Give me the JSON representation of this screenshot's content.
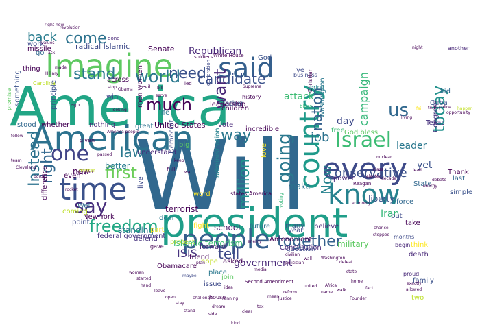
{
  "word_cloud": {
    "words": [
      {
        "text": "Will",
        "color": "#31688e"
      },
      {
        "text": "America",
        "color": "#21a585"
      },
      {
        "text": "president",
        "color": "#1f9e89"
      },
      {
        "text": "American",
        "color": "#2c728e"
      },
      {
        "text": "Imagine",
        "color": "#5ec962"
      },
      {
        "text": "time",
        "color": "#3b528b"
      },
      {
        "text": "said",
        "color": "#35608d"
      },
      {
        "text": "every",
        "color": "#3e4a89"
      },
      {
        "text": "people",
        "color": "#355f8d"
      },
      {
        "text": "country",
        "color": "#1f9a8a"
      },
      {
        "text": "know",
        "color": "#26828e"
      },
      {
        "text": "freedom",
        "color": "#22a884"
      },
      {
        "text": "Israel",
        "color": "#3dbc74"
      },
      {
        "text": "one",
        "color": "#414487"
      },
      {
        "text": "say",
        "color": "#472d7b"
      },
      {
        "text": "world",
        "color": "#2a788e"
      },
      {
        "text": "way",
        "color": "#2a788e"
      },
      {
        "text": "us",
        "color": "#31688e"
      },
      {
        "text": "today",
        "color": "#21918c"
      },
      {
        "text": "going",
        "color": "#2a788e"
      },
      {
        "text": "candidate",
        "color": "#3b528b"
      },
      {
        "text": "much",
        "color": "#440154"
      },
      {
        "text": "come",
        "color": "#2c728e"
      },
      {
        "text": "stand",
        "color": "#2a788e"
      },
      {
        "text": "want",
        "color": "#482878"
      },
      {
        "text": "million",
        "color": "#21918c"
      },
      {
        "text": "together",
        "color": "#34618d"
      },
      {
        "text": "nation",
        "color": "#34618d"
      },
      {
        "text": "first",
        "color": "#6ccd5a"
      },
      {
        "text": "law",
        "color": "#2a788e"
      },
      {
        "text": "conservative",
        "color": "#3b528b"
      },
      {
        "text": "back",
        "color": "#287c8e"
      },
      {
        "text": "need",
        "color": "#3b528b"
      },
      {
        "text": "tell",
        "color": "#3e4a89"
      },
      {
        "text": "Now",
        "color": "#26828e"
      },
      {
        "text": "job",
        "color": "#2c728e"
      },
      {
        "text": "Republican",
        "color": "#482878"
      },
      {
        "text": "right",
        "color": "#31688e"
      },
      {
        "text": "Instead",
        "color": "#2c728e"
      },
      {
        "text": "United States",
        "color": "#440154"
      },
      {
        "text": "radical Islamic",
        "color": "#3e4a89"
      },
      {
        "text": "Senate",
        "color": "#440154"
      },
      {
        "text": "campaign",
        "color": "#35b779"
      },
      {
        "text": "leader",
        "color": "#2a788e"
      },
      {
        "text": "yet",
        "color": "#3b528b"
      },
      {
        "text": "government",
        "color": "#482878"
      },
      {
        "text": "ISIS",
        "color": "#46327e"
      },
      {
        "text": "terrorist",
        "color": "#440154"
      },
      {
        "text": "standing",
        "color": "#2a788e"
      },
      {
        "text": "school",
        "color": "#481769"
      },
      {
        "text": "Iran",
        "color": "#35b779"
      },
      {
        "text": "military",
        "color": "#5ec962"
      },
      {
        "text": "liberty",
        "color": "#3b528b"
      },
      {
        "text": "make",
        "color": "#2c728e"
      },
      {
        "text": "day",
        "color": "#3e4a89"
      },
      {
        "text": "vote",
        "color": "#482878"
      },
      {
        "text": "new",
        "color": "#440154"
      },
      {
        "text": "better",
        "color": "#287c8e"
      },
      {
        "text": "live",
        "color": "#3e4a89"
      },
      {
        "text": "free",
        "color": "#3dbc74"
      },
      {
        "text": "God bless",
        "color": "#5ec962"
      },
      {
        "text": "Cuba",
        "color": "#3b528b"
      },
      {
        "text": "Texas",
        "color": "#46327e"
      },
      {
        "text": "kid",
        "color": "#31688e"
      },
      {
        "text": "Thank",
        "color": "#440154"
      },
      {
        "text": "last",
        "color": "#31688e"
      },
      {
        "text": "simple",
        "color": "#3b528b"
      },
      {
        "text": "another",
        "color": "#482878"
      },
      {
        "text": "Congress",
        "color": "#46327e"
      },
      {
        "text": "force",
        "color": "#31688e"
      },
      {
        "text": "State",
        "color": "#31688e"
      },
      {
        "text": "take",
        "color": "#440154"
      },
      {
        "text": "put",
        "color": "#3e4a89"
      },
      {
        "text": "death",
        "color": "#482878"
      },
      {
        "text": "family",
        "color": "#3b528b"
      },
      {
        "text": "two",
        "color": "#bddf26"
      },
      {
        "text": "Islamic terrorism",
        "color": "#3dbc74"
      },
      {
        "text": "Obamacare",
        "color": "#440154"
      },
      {
        "text": "federal government",
        "color": "#46327e"
      },
      {
        "text": "New York",
        "color": "#440154"
      },
      {
        "text": "Well",
        "color": "#31688e"
      },
      {
        "text": "Amendment",
        "color": "#440154"
      },
      {
        "text": "Constitution",
        "color": "#482878"
      },
      {
        "text": "question",
        "color": "#3e4a89"
      },
      {
        "text": "Let",
        "color": "#2a788e"
      },
      {
        "text": "believe",
        "color": "#482878"
      },
      {
        "text": "future",
        "color": "#2c728e"
      },
      {
        "text": "incredible",
        "color": "#440154"
      },
      {
        "text": "Washington",
        "color": "#2a788e"
      },
      {
        "text": "children",
        "color": "#440154"
      },
      {
        "text": "father",
        "color": "#3b528b"
      },
      {
        "text": "life",
        "color": "#2a788e"
      },
      {
        "text": "great",
        "color": "#2c728e"
      },
      {
        "text": "nothing",
        "color": "#482878"
      },
      {
        "text": "thing",
        "color": "#440154"
      },
      {
        "text": "principle",
        "color": "#3b528b"
      },
      {
        "text": "stood",
        "color": "#31688e"
      },
      {
        "text": "whether",
        "color": "#440154"
      },
      {
        "text": "something",
        "color": "#3b528b"
      },
      {
        "text": "missile",
        "color": "#440154"
      },
      {
        "text": "go",
        "color": "#31688e"
      },
      {
        "text": "work",
        "color": "#3e4a89"
      },
      {
        "text": "across",
        "color": "#440154"
      },
      {
        "text": "win",
        "color": "#3e4a89"
      },
      {
        "text": "leadership",
        "color": "#440154"
      },
      {
        "text": "attack",
        "color": "#3dbc74"
      },
      {
        "text": "ye",
        "color": "#3e4a89"
      },
      {
        "text": "history",
        "color": "#440154"
      },
      {
        "text": "deal",
        "color": "#2a788e"
      },
      {
        "text": "defend",
        "color": "#46327e"
      },
      {
        "text": "forward",
        "color": "#482878"
      },
      {
        "text": "friend",
        "color": "#440154"
      },
      {
        "text": "hope",
        "color": "#c2df23"
      },
      {
        "text": "asked",
        "color": "#440154"
      },
      {
        "text": "issue",
        "color": "#3e4a89"
      },
      {
        "text": "place",
        "color": "#2a788e"
      },
      {
        "text": "join",
        "color": "#5ec962"
      },
      {
        "text": "word",
        "color": "#fde725"
      },
      {
        "text": "understand",
        "color": "#482878"
      },
      {
        "text": "protect",
        "color": "#bddf26"
      },
      {
        "text": "fight",
        "color": "#fde725"
      },
      {
        "text": "coming",
        "color": "#bddf26"
      },
      {
        "text": "difference",
        "color": "#440154"
      },
      {
        "text": "Democrat",
        "color": "#3e4a89"
      },
      {
        "text": "power",
        "color": "#482878"
      },
      {
        "text": "gave",
        "color": "#440154"
      },
      {
        "text": "point",
        "color": "#3e4a89"
      },
      {
        "text": "men women",
        "color": "#440154"
      },
      {
        "text": "God",
        "color": "#3b528b"
      },
      {
        "text": "many",
        "color": "#3b528b"
      },
      {
        "text": "even",
        "color": "#440154"
      },
      {
        "text": "full",
        "color": "#440154"
      },
      {
        "text": "house",
        "color": "#440154"
      },
      {
        "text": "think",
        "color": "#fde725"
      },
      {
        "text": "begin",
        "color": "#482878"
      },
      {
        "text": "months",
        "color": "#3e4a89"
      },
      {
        "text": "bring",
        "color": "#26828e"
      },
      {
        "text": "business",
        "color": "#3e4a89"
      },
      {
        "text": "politician",
        "color": "#440154"
      },
      {
        "text": "soldiers",
        "color": "#440154"
      },
      {
        "text": "White House",
        "color": "#440154"
      },
      {
        "text": "generation",
        "color": "#3e4a89"
      },
      {
        "text": "administration",
        "color": "#26828e"
      },
      {
        "text": "love",
        "color": "#fde725"
      },
      {
        "text": "voting",
        "color": "#35b779"
      },
      {
        "text": "Christian",
        "color": "#440154"
      },
      {
        "text": "part",
        "color": "#fde725"
      },
      {
        "text": "ago",
        "color": "#440154"
      },
      {
        "text": "big",
        "color": "#5ec962"
      },
      {
        "text": "bless",
        "color": "#35b779"
      },
      {
        "text": "states America",
        "color": "#440154"
      },
      {
        "text": "proud",
        "color": "#482878"
      },
      {
        "text": "year",
        "color": "#3e4a89"
      },
      {
        "text": "given",
        "color": "#440154"
      },
      {
        "text": "Carolina",
        "color": "#bddf26"
      },
      {
        "text": "revolution",
        "color": "#440154"
      },
      {
        "text": "right now",
        "color": "#440154"
      },
      {
        "text": "done",
        "color": "#482878"
      },
      {
        "text": "evil",
        "color": "#440154"
      },
      {
        "text": "led",
        "color": "#440154"
      },
      {
        "text": "Supreme",
        "color": "#440154"
      },
      {
        "text": "matter",
        "color": "#c2df23"
      },
      {
        "text": "serve",
        "color": "#440154"
      },
      {
        "text": "bill",
        "color": "#440154"
      },
      {
        "text": "Reagan",
        "color": "#440154"
      },
      {
        "text": "dream",
        "color": "#440154"
      },
      {
        "text": "allowed",
        "color": "#440154"
      },
      {
        "text": "maybe",
        "color": "#3e4a89"
      },
      {
        "text": "plan",
        "color": "#440154"
      },
      {
        "text": "idea",
        "color": "#440154"
      },
      {
        "text": "running",
        "color": "#440154"
      },
      {
        "text": "Second Amendment",
        "color": "#440154"
      },
      {
        "text": "media",
        "color": "#440154"
      },
      {
        "text": "enemy",
        "color": "#440154"
      },
      {
        "text": "war",
        "color": "#440154"
      },
      {
        "text": "keep",
        "color": "#440154"
      },
      {
        "text": "looking",
        "color": "#440154"
      },
      {
        "text": "support",
        "color": "#440154"
      },
      {
        "text": "Obama",
        "color": "#440154"
      },
      {
        "text": "rocket",
        "color": "#440154"
      },
      {
        "text": "passed",
        "color": "#440154"
      },
      {
        "text": "stop",
        "color": "#440154"
      },
      {
        "text": "exactly",
        "color": "#440154"
      },
      {
        "text": "night",
        "color": "#440154"
      },
      {
        "text": "happen",
        "color": "#c2df23"
      },
      {
        "text": "opportunity",
        "color": "#440154"
      },
      {
        "text": "Hillary",
        "color": "#440154"
      },
      {
        "text": "promise",
        "color": "#5ec962"
      },
      {
        "text": "values",
        "color": "#440154"
      },
      {
        "text": "ask",
        "color": "#440154"
      },
      {
        "text": "made",
        "color": "#440154"
      },
      {
        "text": "Cleveland",
        "color": "#440154"
      },
      {
        "text": "fellow",
        "color": "#440154"
      },
      {
        "text": "team",
        "color": "#440154"
      },
      {
        "text": "border",
        "color": "#440154"
      },
      {
        "text": "America people",
        "color": "#440154"
      },
      {
        "text": "lead",
        "color": "#440154"
      },
      {
        "text": "living",
        "color": "#440154"
      },
      {
        "text": "fail",
        "color": "#fde725"
      },
      {
        "text": "truth",
        "color": "#440154"
      },
      {
        "text": "police",
        "color": "#440154"
      },
      {
        "text": "debate",
        "color": "#440154"
      },
      {
        "text": "energy",
        "color": "#440154"
      },
      {
        "text": "class",
        "color": "#440154"
      },
      {
        "text": "decade",
        "color": "#440154"
      },
      {
        "text": "elected",
        "color": "#440154"
      },
      {
        "text": "nuclear",
        "color": "#440154"
      },
      {
        "text": "economy",
        "color": "#440154"
      },
      {
        "text": "chance",
        "color": "#440154"
      },
      {
        "text": "stopped",
        "color": "#440154"
      },
      {
        "text": "civilian",
        "color": "#440154"
      },
      {
        "text": "wall",
        "color": "#440154"
      },
      {
        "text": "Washington",
        "color": "#440154"
      },
      {
        "text": "defeat",
        "color": "#440154"
      },
      {
        "text": "state",
        "color": "#440154"
      },
      {
        "text": "home",
        "color": "#440154"
      },
      {
        "text": "Africa",
        "color": "#440154"
      },
      {
        "text": "walk",
        "color": "#440154"
      },
      {
        "text": "fact",
        "color": "#440154"
      },
      {
        "text": "Founder",
        "color": "#440154"
      },
      {
        "text": "name",
        "color": "#440154"
      },
      {
        "text": "challenge",
        "color": "#440154"
      },
      {
        "text": "clear",
        "color": "#440154"
      },
      {
        "text": "tax",
        "color": "#440154"
      },
      {
        "text": "justice",
        "color": "#440154"
      },
      {
        "text": "reform",
        "color": "#440154"
      },
      {
        "text": "united",
        "color": "#440154"
      },
      {
        "text": "mean",
        "color": "#440154"
      },
      {
        "text": "kind",
        "color": "#440154"
      },
      {
        "text": "side",
        "color": "#440154"
      },
      {
        "text": "woman",
        "color": "#440154"
      },
      {
        "text": "started",
        "color": "#440154"
      },
      {
        "text": "hand",
        "color": "#440154"
      },
      {
        "text": "leave",
        "color": "#440154"
      },
      {
        "text": "open",
        "color": "#440154"
      },
      {
        "text": "stay",
        "color": "#440154"
      },
      {
        "text": "stand",
        "color": "#440154"
      }
    ]
  }
}
